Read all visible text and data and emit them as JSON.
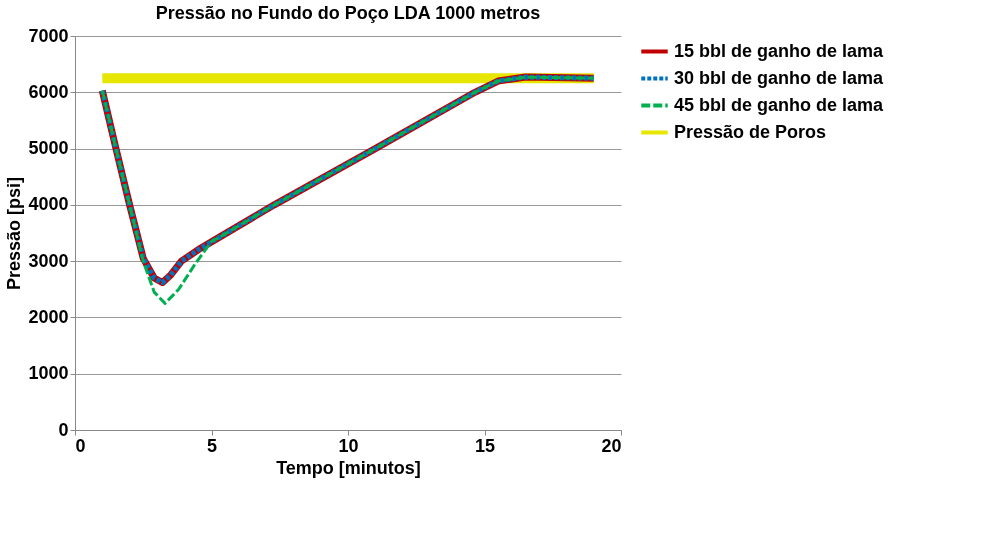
{
  "chart_data": {
    "type": "line",
    "title": "Pressão no Fundo do Poço LDA 1000 metros",
    "xlabel": "Tempo [minutos]",
    "ylabel": "Pressão [psi]",
    "xlim": [
      0,
      20
    ],
    "xticks": [
      0,
      5,
      10,
      15,
      20
    ],
    "ylim": [
      0,
      7000
    ],
    "yticks": [
      0,
      1000,
      2000,
      3000,
      4000,
      5000,
      6000,
      7000
    ],
    "grid": "y",
    "legend": "right",
    "marker": "none",
    "series": [
      {
        "name": "15 bbl de ganho de lama",
        "color": "#c00000",
        "line_style": "solid",
        "x": [
          1,
          1.5,
          2,
          2.5,
          2.9,
          3.2,
          3.5,
          3.9,
          4.6,
          5.2,
          7.3,
          11,
          14.65,
          15.5,
          16.5,
          19
        ],
        "values": [
          6030,
          5000,
          4000,
          3050,
          2700,
          2620,
          2750,
          3000,
          3230,
          3400,
          4000,
          5000,
          6000,
          6200,
          6270,
          6250
        ]
      },
      {
        "name": "30 bbl de ganho de lama",
        "color": "#0070c0",
        "line_style": "dashed",
        "x": [
          1,
          1.5,
          2,
          2.5,
          2.9,
          3.2,
          3.5,
          3.9,
          4.6,
          5.2,
          7.3,
          11,
          14.65,
          15.5,
          16.5,
          19
        ],
        "values": [
          6030,
          5000,
          4000,
          3050,
          2700,
          2620,
          2750,
          3000,
          3230,
          3400,
          4000,
          5000,
          6000,
          6200,
          6270,
          6250
        ]
      },
      {
        "name": "45 bbl de ganho de lama",
        "color": "#00b050",
        "line_style": "dashed",
        "x": [
          1,
          1.5,
          2,
          2.5,
          2.9,
          3.3,
          3.8,
          4.4,
          5.0,
          5.2,
          7.3,
          11,
          14.65,
          15.5,
          16.5,
          19
        ],
        "values": [
          6030,
          5000,
          4000,
          3000,
          2450,
          2250,
          2500,
          2950,
          3350,
          3400,
          4000,
          5000,
          6000,
          6200,
          6270,
          6250
        ]
      },
      {
        "name": "Pressão de Poros",
        "color": "#e6e600",
        "line_style": "solid",
        "x": [
          1,
          19
        ],
        "values": [
          6250,
          6250
        ]
      }
    ]
  }
}
